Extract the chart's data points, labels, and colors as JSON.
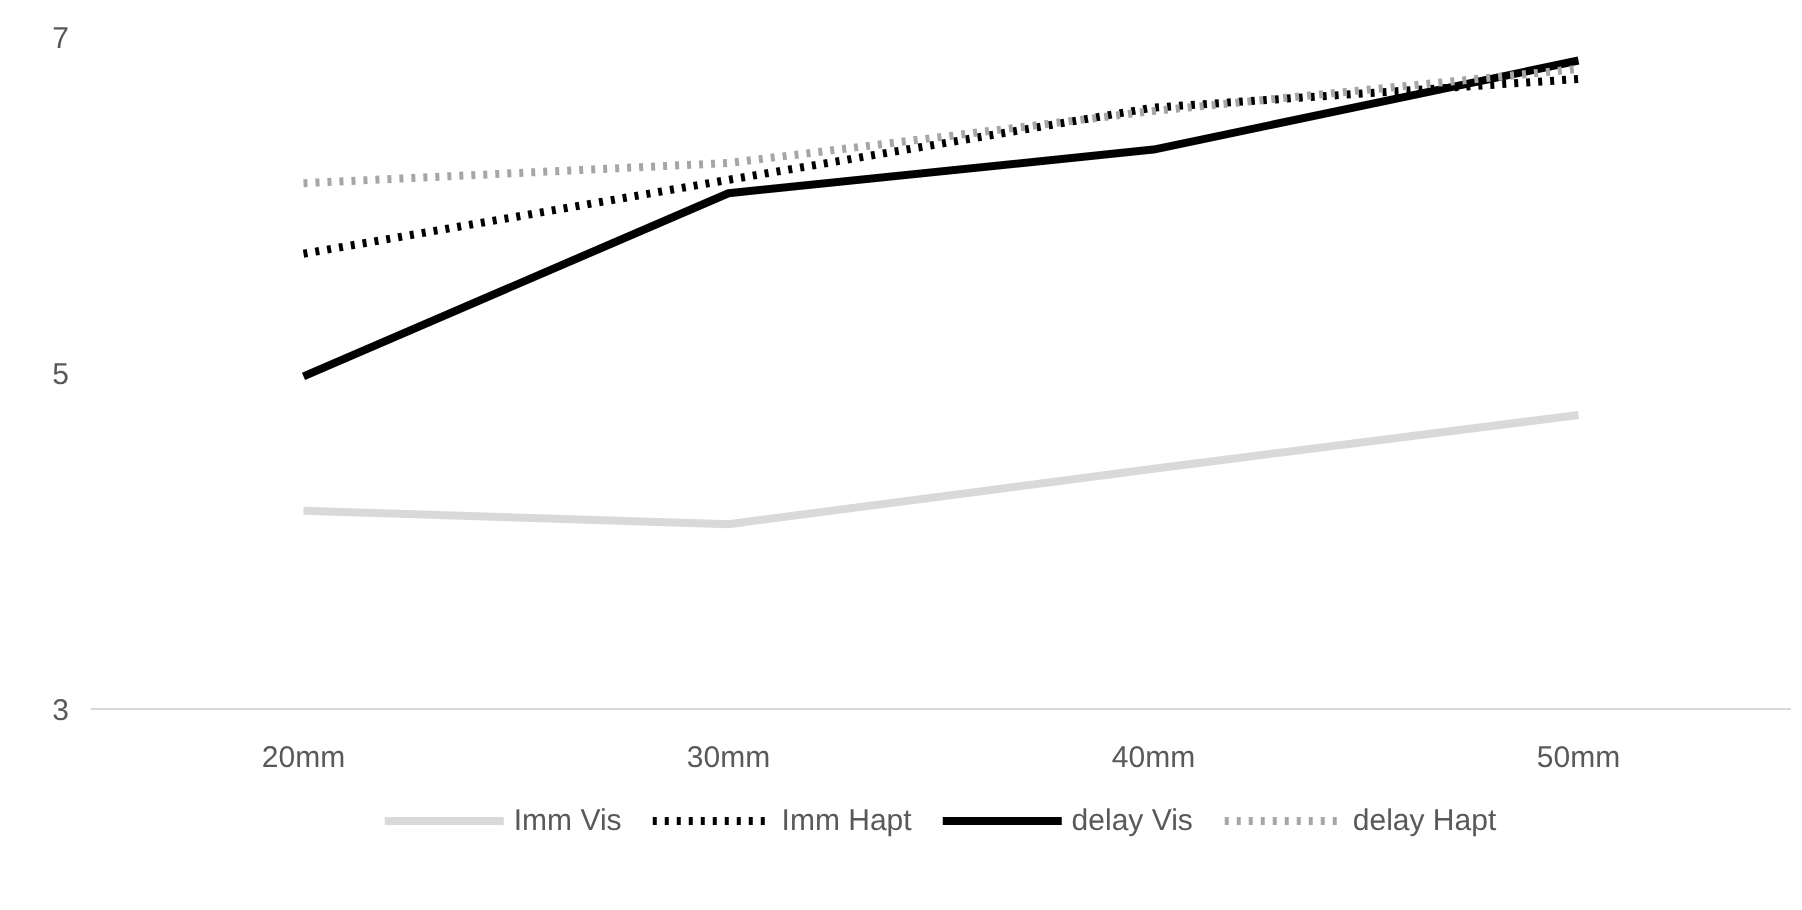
{
  "chart_data": {
    "type": "line",
    "categories": [
      "20mm",
      "30mm",
      "40mm",
      "50mm"
    ],
    "series": [
      {
        "name": "Imm Vis",
        "color": "#d9d9d9",
        "line_style": "solid",
        "values": [
          4.18,
          4.1,
          4.43,
          4.75
        ]
      },
      {
        "name": "Imm Hapt",
        "color": "#000000",
        "line_style": "dotted",
        "values": [
          5.71,
          6.15,
          6.58,
          6.75
        ]
      },
      {
        "name": "delay Vis",
        "color": "#000000",
        "line_style": "solid",
        "values": [
          4.98,
          6.07,
          6.33,
          6.86
        ]
      },
      {
        "name": "delay Hapt",
        "color": "#a6a6a6",
        "line_style": "dotted",
        "values": [
          6.13,
          6.25,
          6.56,
          6.81
        ]
      }
    ],
    "ylim": [
      3,
      7
    ],
    "yticks": [
      3,
      5,
      7
    ],
    "grid": false,
    "legend": "bottom",
    "marker": "none"
  }
}
